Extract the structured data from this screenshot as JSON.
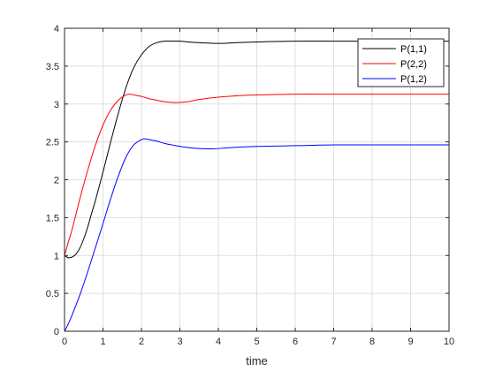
{
  "chart_data": {
    "type": "line",
    "title": "",
    "xlabel": "time",
    "ylabel": "",
    "xlim": [
      0,
      10
    ],
    "ylim": [
      0,
      4
    ],
    "xticks": [
      0,
      1,
      2,
      3,
      4,
      5,
      6,
      7,
      8,
      9,
      10
    ],
    "yticks": [
      0,
      0.5,
      1,
      1.5,
      2,
      2.5,
      3,
      3.5,
      4
    ],
    "x_tick_labels": [
      "0",
      "1",
      "2",
      "3",
      "4",
      "5",
      "6",
      "7",
      "8",
      "9",
      "10"
    ],
    "y_tick_labels": [
      "0",
      "0.5",
      "1",
      "1.5",
      "2",
      "2.5",
      "3",
      "3.5",
      "4"
    ],
    "grid": true,
    "legend_position": "top-right",
    "series": [
      {
        "name": "P(1,1)",
        "color": "#000000",
        "x": [
          0,
          0.1,
          0.2,
          0.3,
          0.4,
          0.5,
          0.6,
          0.7,
          0.8,
          1.0,
          1.2,
          1.4,
          1.6,
          1.8,
          2.0,
          2.2,
          2.4,
          2.6,
          2.8,
          3.0,
          3.2,
          3.5,
          4.0,
          4.5,
          5.0,
          6.0,
          7.0,
          8.0,
          9.0,
          10.0
        ],
        "y": [
          1.0,
          0.97,
          0.98,
          1.02,
          1.1,
          1.22,
          1.37,
          1.55,
          1.72,
          2.1,
          2.5,
          2.88,
          3.22,
          3.48,
          3.65,
          3.76,
          3.81,
          3.83,
          3.83,
          3.83,
          3.82,
          3.81,
          3.8,
          3.81,
          3.82,
          3.83,
          3.83,
          3.83,
          3.83,
          3.83
        ]
      },
      {
        "name": "P(2,2)",
        "color": "#ff0000",
        "x": [
          0,
          0.1,
          0.2,
          0.4,
          0.6,
          0.8,
          1.0,
          1.2,
          1.4,
          1.6,
          1.7,
          1.8,
          2.0,
          2.2,
          2.4,
          2.6,
          2.8,
          3.0,
          3.2,
          3.5,
          4.0,
          4.5,
          5.0,
          6.0,
          7.0,
          8.0,
          9.0,
          10.0
        ],
        "y": [
          1.0,
          1.18,
          1.35,
          1.75,
          2.12,
          2.45,
          2.72,
          2.92,
          3.05,
          3.12,
          3.13,
          3.12,
          3.1,
          3.07,
          3.05,
          3.03,
          3.02,
          3.02,
          3.03,
          3.06,
          3.09,
          3.11,
          3.12,
          3.13,
          3.13,
          3.13,
          3.13,
          3.13
        ]
      },
      {
        "name": "P(1,2)",
        "color": "#0000ff",
        "x": [
          0,
          0.1,
          0.2,
          0.4,
          0.6,
          0.8,
          1.0,
          1.2,
          1.4,
          1.6,
          1.8,
          2.0,
          2.1,
          2.2,
          2.4,
          2.6,
          2.8,
          3.0,
          3.3,
          3.6,
          3.9,
          4.2,
          4.5,
          5.0,
          6.0,
          7.0,
          8.0,
          9.0,
          10.0
        ],
        "y": [
          0.0,
          0.1,
          0.22,
          0.48,
          0.78,
          1.1,
          1.42,
          1.75,
          2.05,
          2.3,
          2.46,
          2.53,
          2.54,
          2.53,
          2.51,
          2.48,
          2.46,
          2.44,
          2.42,
          2.41,
          2.41,
          2.42,
          2.43,
          2.44,
          2.45,
          2.46,
          2.46,
          2.46,
          2.46
        ]
      }
    ]
  }
}
